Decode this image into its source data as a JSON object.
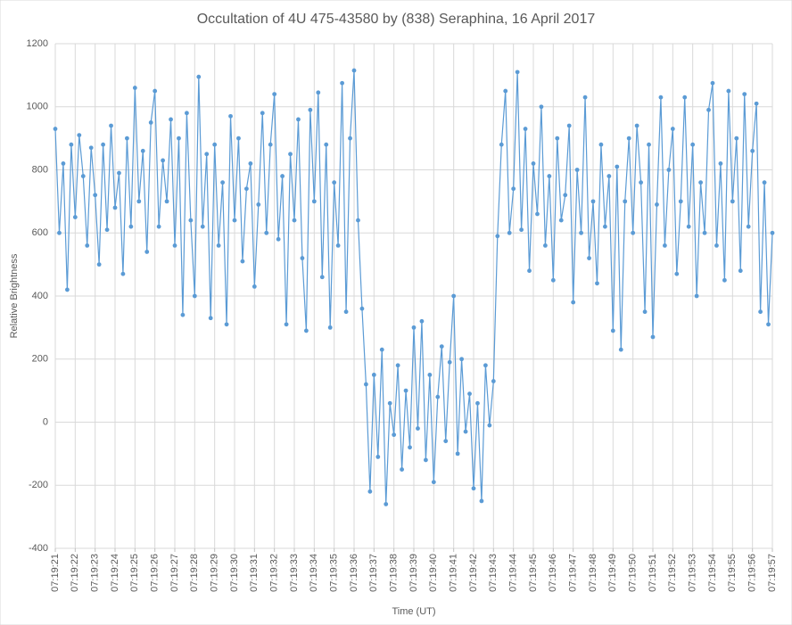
{
  "chart_data": {
    "type": "line",
    "title": "Occultation of 4U 475-43580 by (838) Seraphina, 16 April 2017",
    "x_label": "Time (UT)",
    "y_label": "Relative Brightness",
    "color": "#5b9bd5",
    "grid": true,
    "xlim": [
      21,
      57
    ],
    "xticks": [
      {
        "value": 21,
        "label": "07:19:21"
      },
      {
        "value": 22,
        "label": "07:19:22"
      },
      {
        "value": 23,
        "label": "07:19:23"
      },
      {
        "value": 24,
        "label": "07:19:24"
      },
      {
        "value": 25,
        "label": "07:19:25"
      },
      {
        "value": 26,
        "label": "07:19:26"
      },
      {
        "value": 27,
        "label": "07:19:27"
      },
      {
        "value": 28,
        "label": "07:19:28"
      },
      {
        "value": 29,
        "label": "07:19:29"
      },
      {
        "value": 30,
        "label": "07:19:30"
      },
      {
        "value": 31,
        "label": "07:19:31"
      },
      {
        "value": 32,
        "label": "07:19:32"
      },
      {
        "value": 33,
        "label": "07:19:33"
      },
      {
        "value": 34,
        "label": "07:19:34"
      },
      {
        "value": 35,
        "label": "07:19:35"
      },
      {
        "value": 36,
        "label": "07:19:36"
      },
      {
        "value": 37,
        "label": "07:19:37"
      },
      {
        "value": 38,
        "label": "07:19:38"
      },
      {
        "value": 39,
        "label": "07:19:39"
      },
      {
        "value": 40,
        "label": "07:19:40"
      },
      {
        "value": 41,
        "label": "07:19:41"
      },
      {
        "value": 42,
        "label": "07:19:42"
      },
      {
        "value": 43,
        "label": "07:19:43"
      },
      {
        "value": 44,
        "label": "07:19:44"
      },
      {
        "value": 45,
        "label": "07:19:45"
      },
      {
        "value": 46,
        "label": "07:19:46"
      },
      {
        "value": 47,
        "label": "07:19:47"
      },
      {
        "value": 48,
        "label": "07:19:48"
      },
      {
        "value": 49,
        "label": "07:19:49"
      },
      {
        "value": 50,
        "label": "07:19:50"
      },
      {
        "value": 51,
        "label": "07:19:51"
      },
      {
        "value": 52,
        "label": "07:19:52"
      },
      {
        "value": 53,
        "label": "07:19:53"
      },
      {
        "value": 54,
        "label": "07:19:54"
      },
      {
        "value": 55,
        "label": "07:19:55"
      },
      {
        "value": 56,
        "label": "07:19:56"
      },
      {
        "value": 57,
        "label": "07:19:57"
      }
    ],
    "ylim": [
      -400,
      1200
    ],
    "yticks": [
      -400,
      -200,
      0,
      200,
      400,
      600,
      800,
      1000,
      1200
    ],
    "x": [
      21,
      21.2,
      21.4,
      21.6,
      21.8,
      22,
      22.2,
      22.4,
      22.6,
      22.8,
      23,
      23.2,
      23.4,
      23.6,
      23.8,
      24,
      24.2,
      24.4,
      24.6,
      24.8,
      25,
      25.2,
      25.4,
      25.6,
      25.8,
      26,
      26.2,
      26.4,
      26.6,
      26.8,
      27,
      27.2,
      27.4,
      27.6,
      27.8,
      28,
      28.2,
      28.4,
      28.6,
      28.8,
      29,
      29.2,
      29.4,
      29.6,
      29.8,
      30,
      30.2,
      30.4,
      30.6,
      30.8,
      31,
      31.2,
      31.4,
      31.6,
      31.8,
      32,
      32.2,
      32.4,
      32.6,
      32.8,
      33,
      33.2,
      33.4,
      33.6,
      33.8,
      34,
      34.2,
      34.4,
      34.6,
      34.8,
      35,
      35.2,
      35.4,
      35.6,
      35.8,
      36,
      36.2,
      36.4,
      36.6,
      36.8,
      37,
      37.2,
      37.4,
      37.6,
      37.8,
      38,
      38.2,
      38.4,
      38.6,
      38.8,
      39,
      39.2,
      39.4,
      39.6,
      39.8,
      40,
      40.2,
      40.4,
      40.6,
      40.8,
      41,
      41.2,
      41.4,
      41.6,
      41.8,
      42,
      42.2,
      42.4,
      42.6,
      42.8,
      43,
      43.2,
      43.4,
      43.6,
      43.8,
      44,
      44.2,
      44.4,
      44.6,
      44.8,
      45,
      45.2,
      45.4,
      45.6,
      45.8,
      46,
      46.2,
      46.4,
      46.6,
      46.8,
      47,
      47.2,
      47.4,
      47.6,
      47.8,
      48,
      48.2,
      48.4,
      48.6,
      48.8,
      49,
      49.2,
      49.4,
      49.6,
      49.8,
      50,
      50.2,
      50.4,
      50.6,
      50.8,
      51,
      51.2,
      51.4,
      51.6,
      51.8,
      52,
      52.2,
      52.4,
      52.6,
      52.8,
      53,
      53.2,
      53.4,
      53.6,
      53.8,
      54,
      54.2,
      54.4,
      54.6,
      54.8,
      55,
      55.2,
      55.4,
      55.6,
      55.8,
      56,
      56.2,
      56.4,
      56.6,
      56.8,
      57
    ],
    "values": [
      930,
      600,
      820,
      420,
      880,
      650,
      910,
      780,
      560,
      870,
      720,
      500,
      880,
      610,
      940,
      680,
      790,
      470,
      900,
      620,
      1060,
      700,
      860,
      540,
      950,
      1050,
      620,
      830,
      700,
      960,
      560,
      900,
      340,
      980,
      640,
      400,
      1095,
      620,
      850,
      330,
      880,
      560,
      760,
      310,
      970,
      640,
      900,
      510,
      740,
      820,
      430,
      690,
      980,
      600,
      880,
      1040,
      580,
      780,
      310,
      850,
      640,
      960,
      520,
      290,
      990,
      700,
      1045,
      460,
      880,
      300,
      760,
      560,
      1075,
      350,
      900,
      1115,
      640,
      360,
      120,
      -220,
      150,
      -110,
      230,
      -260,
      60,
      -40,
      180,
      -150,
      100,
      -80,
      300,
      -20,
      320,
      -120,
      150,
      -190,
      80,
      240,
      -60,
      190,
      400,
      -100,
      200,
      -30,
      90,
      -210,
      60,
      -250,
      180,
      -10,
      130,
      590,
      880,
      1050,
      600,
      740,
      1110,
      610,
      930,
      480,
      820,
      660,
      1000,
      560,
      780,
      450,
      900,
      640,
      720,
      940,
      380,
      800,
      600,
      1030,
      520,
      700,
      440,
      880,
      620,
      780,
      290,
      810,
      230,
      700,
      900,
      600,
      940,
      760,
      350,
      880,
      270,
      690,
      1030,
      560,
      800,
      930,
      470,
      700,
      1030,
      620,
      880,
      400,
      760,
      600,
      990,
      1075,
      560,
      820,
      450,
      1050,
      700,
      900,
      480,
      1040,
      620,
      860,
      1010,
      350,
      760,
      310,
      600
    ]
  }
}
